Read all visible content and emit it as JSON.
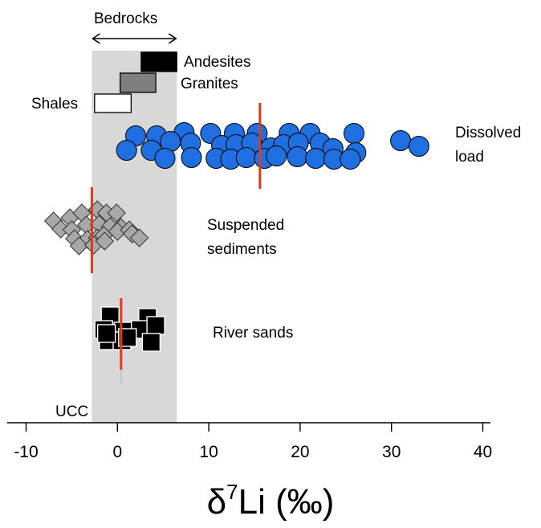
{
  "chart_data": {
    "type": "scatter",
    "xlabel": {
      "main": "δ",
      "sup": "7",
      "rest": "Li (‰)"
    },
    "xlim": [
      -10,
      40
    ],
    "x_ticks": [
      -10,
      0,
      10,
      20,
      30,
      40
    ],
    "x_tick_labels": [
      "-10",
      "0",
      "10",
      "20",
      "30",
      "40"
    ],
    "bedrock_range": [
      -2.8,
      6.5
    ],
    "annotations": {
      "bedrocks": "Bedrocks",
      "andesites": "Andesites",
      "granites": "Granites",
      "shales": "Shales",
      "dissolved_1": "Dissolved",
      "dissolved_2": "load",
      "suspended_1": "Suspended",
      "suspended_2": "sediments",
      "river_sands": "River sands",
      "ucc": "UCC"
    },
    "bedrocks": [
      {
        "name": "Andesites",
        "x_min": 2.6,
        "x_max": 6.5,
        "color": "#000000"
      },
      {
        "name": "Granites",
        "x_min": 0.3,
        "x_max": 4.2,
        "color": "#7f7f7f"
      },
      {
        "name": "Shales",
        "x_min": -2.5,
        "x_max": 1.5,
        "color": "#ffffff"
      }
    ],
    "series": [
      {
        "name": "Dissolved load",
        "color": "#1f6fe0",
        "median": 15.6,
        "points": [
          [
            2.0,
            169
          ],
          [
            4.3,
            169
          ],
          [
            7.3,
            165
          ],
          [
            10.2,
            166
          ],
          [
            12.8,
            166
          ],
          [
            15.3,
            166
          ],
          [
            18.8,
            166
          ],
          [
            21.1,
            166
          ],
          [
            25.9,
            166
          ],
          [
            1.0,
            187
          ],
          [
            3.7,
            187
          ],
          [
            5.8,
            176
          ],
          [
            8.0,
            178
          ],
          [
            11.4,
            181
          ],
          [
            13.0,
            180
          ],
          [
            14.7,
            178
          ],
          [
            16.8,
            184
          ],
          [
            18.2,
            180
          ],
          [
            19.8,
            178
          ],
          [
            22.2,
            178
          ],
          [
            23.6,
            185
          ],
          [
            26.1,
            190
          ],
          [
            5.2,
            197
          ],
          [
            8.1,
            196
          ],
          [
            10.8,
            197
          ],
          [
            12.4,
            198
          ],
          [
            14.1,
            196
          ],
          [
            16.1,
            197
          ],
          [
            17.4,
            194
          ],
          [
            19.7,
            195
          ],
          [
            21.7,
            197
          ],
          [
            23.7,
            198
          ],
          [
            25.5,
            198
          ],
          [
            31.0,
            175
          ],
          [
            33.0,
            182
          ]
        ]
      },
      {
        "name": "Suspended sediments",
        "color": "#a8a8a8",
        "median": -2.8,
        "points": [
          [
            -7.0,
            275
          ],
          [
            -5.2,
            271
          ],
          [
            -3.9,
            265
          ],
          [
            -2.2,
            261
          ],
          [
            -1.2,
            265
          ],
          [
            -0.1,
            265
          ],
          [
            -6.2,
            285
          ],
          [
            -5.0,
            286
          ],
          [
            -3.4,
            280
          ],
          [
            -2.0,
            279
          ],
          [
            -0.8,
            282
          ],
          [
            0.4,
            283
          ],
          [
            -4.7,
            297
          ],
          [
            -3.3,
            298
          ],
          [
            -2.2,
            296
          ],
          [
            -1.5,
            293
          ],
          [
            0.0,
            288
          ],
          [
            1.3,
            286
          ],
          [
            -4.2,
            306
          ],
          [
            -2.6,
            305
          ],
          [
            -1.4,
            300
          ],
          [
            1.6,
            291
          ],
          [
            2.4,
            296
          ]
        ]
      },
      {
        "name": "River sands",
        "color": "#000000",
        "median": 0.4,
        "points": [
          [
            -0.8,
            393
          ],
          [
            3.3,
            395
          ],
          [
            -1.5,
            410
          ],
          [
            0.6,
            412
          ],
          [
            2.5,
            410
          ],
          [
            4.2,
            405
          ],
          [
            -1.0,
            424
          ],
          [
            0.5,
            424
          ],
          [
            3.7,
            426
          ],
          [
            -1.2,
            415
          ],
          [
            1.1,
            420
          ]
        ]
      }
    ]
  }
}
